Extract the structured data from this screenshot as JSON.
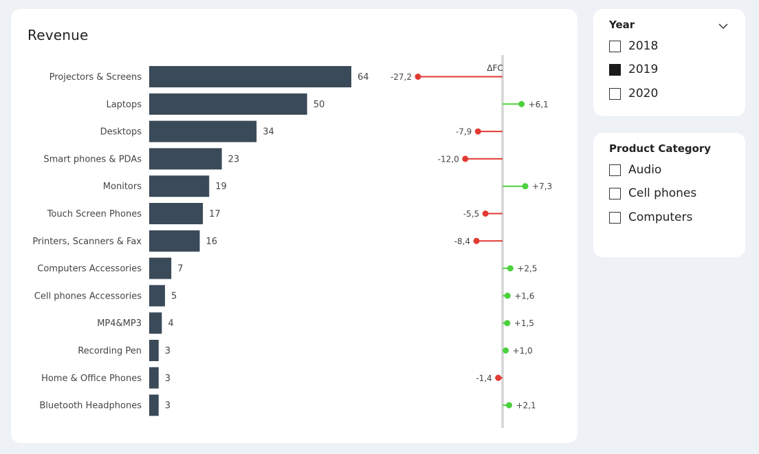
{
  "revenue": {
    "title": "Revenue"
  },
  "chart_data": {
    "type": "bar",
    "title": "Revenue",
    "categories": [
      "Projectors & Screens",
      "Laptops",
      "Desktops",
      "Smart phones & PDAs",
      "Monitors",
      "Touch Screen Phones",
      "Printers, Scanners & Fax",
      "Computers Accessories",
      "Cell phones Accessories",
      "MP4&MP3",
      "Recording Pen",
      "Home & Office Phones",
      "Bluetooth Headphones"
    ],
    "series": [
      {
        "values": [
          64,
          50,
          34,
          23,
          19,
          17,
          16,
          7,
          5,
          4,
          3,
          3,
          3
        ]
      },
      {
        "name": "ΔFC",
        "values": [
          -27.2,
          6.1,
          -7.9,
          -12.0,
          7.3,
          -5.5,
          -8.4,
          2.5,
          1.6,
          1.5,
          1.0,
          -1.4,
          2.1
        ]
      }
    ],
    "value_labels": [
      "64",
      "50",
      "34",
      "23",
      "19",
      "17",
      "16",
      "7",
      "5",
      "4",
      "3",
      "3",
      "3"
    ],
    "delta_labels": [
      "-27,2",
      "+6,1",
      "-7,9",
      "-12,0",
      "+7,3",
      "-5,5",
      "-8,4",
      "+2,5",
      "+1,6",
      "+1,5",
      "+1,0",
      "-1,4",
      "+2,1"
    ],
    "delta_header": "ΔFC",
    "colors": {
      "bar": "#3a4a59",
      "positive": "#4cd13d",
      "negative": "#e13a33",
      "axis": "#d9d9d9",
      "label": "#444444"
    }
  },
  "year_slicer": {
    "title": "Year",
    "options": [
      {
        "label": "2018",
        "checked": false
      },
      {
        "label": "2019",
        "checked": true
      },
      {
        "label": "2020",
        "checked": false
      }
    ]
  },
  "category_slicer": {
    "title": "Product Category",
    "options": [
      {
        "label": "Audio",
        "checked": false
      },
      {
        "label": "Cell phones",
        "checked": false
      },
      {
        "label": "Computers",
        "checked": false
      }
    ]
  }
}
